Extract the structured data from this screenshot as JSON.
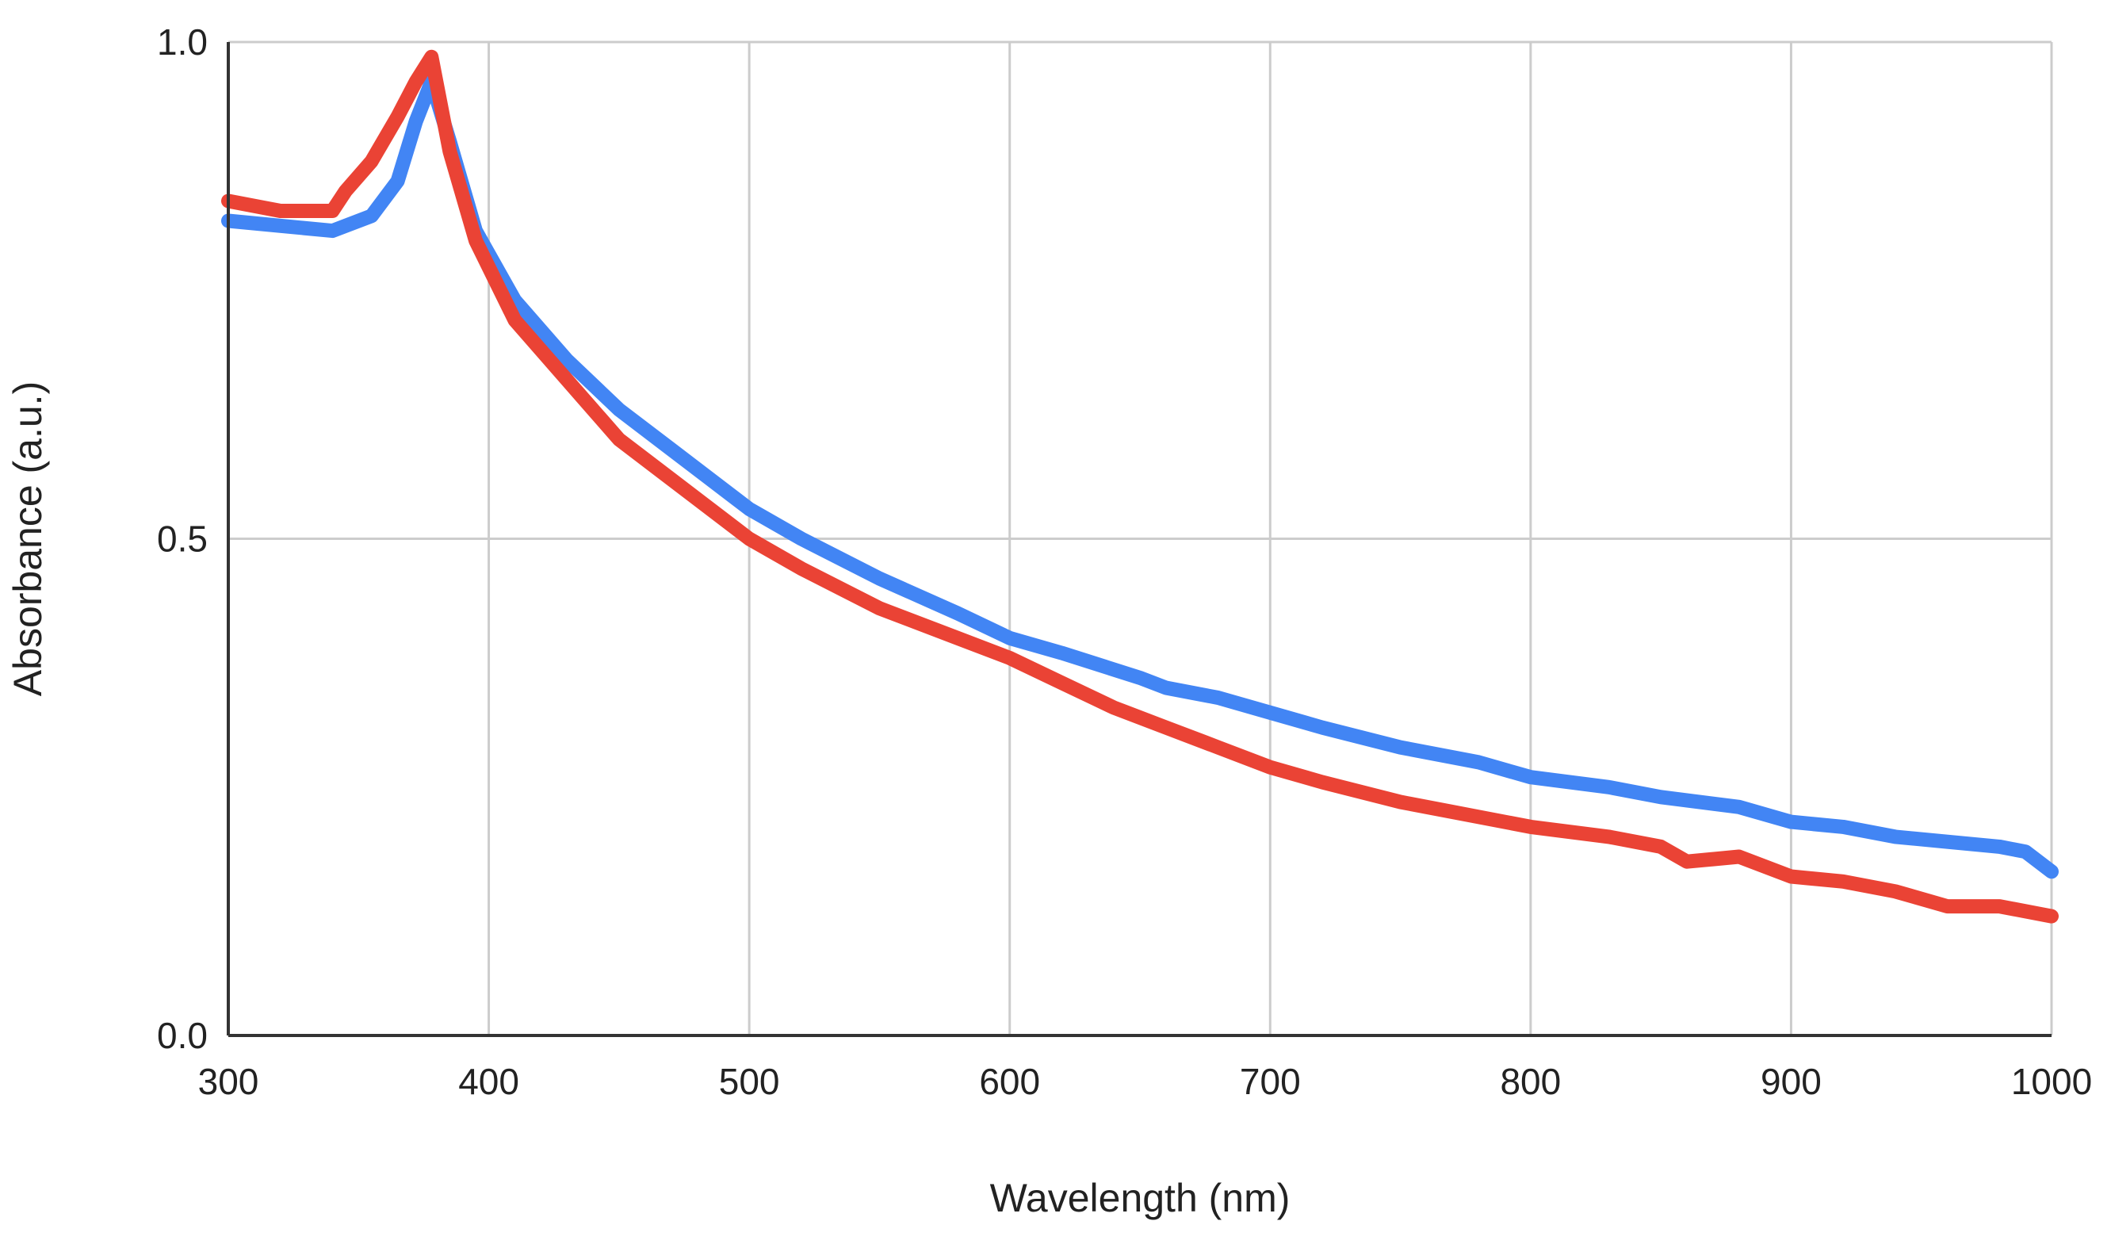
{
  "chart_data": {
    "type": "line",
    "title": "",
    "xlabel": "Wavelength (nm)",
    "ylabel": "Absorbance (a.u.)",
    "xlim": [
      300,
      1000
    ],
    "ylim": [
      0.0,
      1.0
    ],
    "x_ticks": [
      300,
      400,
      500,
      600,
      700,
      800,
      900,
      1000
    ],
    "y_ticks": [
      0.0,
      0.5,
      1.0
    ],
    "x_tick_labels": [
      "300",
      "400",
      "500",
      "600",
      "700",
      "800",
      "900",
      "1000"
    ],
    "y_tick_labels": [
      "0.0",
      "0.5",
      "1.0"
    ],
    "grid": true,
    "legend": "none",
    "series": [
      {
        "color": "#4285f4",
        "x": [
          300,
          320,
          340,
          355,
          365,
          372,
          378,
          385,
          395,
          410,
          430,
          450,
          470,
          500,
          520,
          550,
          580,
          600,
          620,
          650,
          660,
          680,
          700,
          720,
          750,
          780,
          800,
          830,
          850,
          880,
          900,
          920,
          940,
          960,
          980,
          990,
          1000
        ],
        "y": [
          0.82,
          0.815,
          0.81,
          0.825,
          0.86,
          0.92,
          0.96,
          0.9,
          0.81,
          0.74,
          0.68,
          0.63,
          0.59,
          0.53,
          0.5,
          0.46,
          0.425,
          0.4,
          0.385,
          0.36,
          0.35,
          0.34,
          0.325,
          0.31,
          0.29,
          0.275,
          0.26,
          0.25,
          0.24,
          0.23,
          0.215,
          0.21,
          0.2,
          0.195,
          0.19,
          0.185,
          0.165
        ]
      },
      {
        "color": "#ea4335",
        "x": [
          300,
          320,
          340,
          345,
          355,
          365,
          372,
          378,
          385,
          395,
          410,
          430,
          450,
          470,
          500,
          520,
          550,
          580,
          600,
          620,
          640,
          660,
          680,
          700,
          720,
          750,
          780,
          800,
          830,
          850,
          860,
          880,
          900,
          920,
          940,
          960,
          980,
          1000
        ],
        "y": [
          0.84,
          0.83,
          0.83,
          0.85,
          0.88,
          0.925,
          0.96,
          0.985,
          0.89,
          0.8,
          0.72,
          0.66,
          0.6,
          0.56,
          0.5,
          0.47,
          0.43,
          0.4,
          0.38,
          0.355,
          0.33,
          0.31,
          0.29,
          0.27,
          0.255,
          0.235,
          0.22,
          0.21,
          0.2,
          0.19,
          0.175,
          0.18,
          0.16,
          0.155,
          0.145,
          0.13,
          0.13,
          0.12
        ]
      }
    ]
  }
}
